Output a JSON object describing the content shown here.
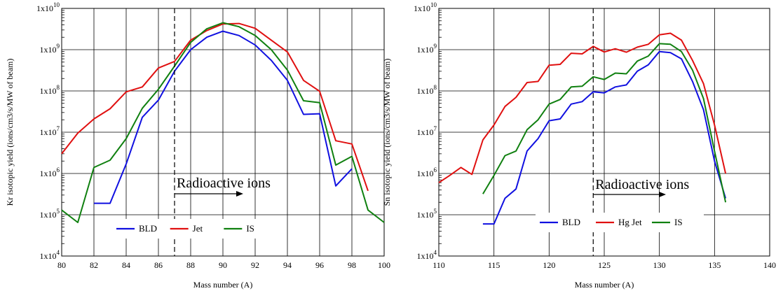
{
  "chart_data": [
    {
      "type": "line",
      "xlabel": "Mass number (A)",
      "ylabel": "Kr isotopic yield (ions/cm3/s/MW of beam)",
      "xlim": [
        80,
        100
      ],
      "ylim_exp": [
        4,
        10
      ],
      "log_y": true,
      "grid": true,
      "x_ticks": [
        "80",
        "82",
        "84",
        "86",
        "88",
        "90",
        "92",
        "94",
        "96",
        "98",
        "100"
      ],
      "y_ticks": [
        {
          "base": "1x10",
          "exp": "4"
        },
        {
          "base": "1x10",
          "exp": "5"
        },
        {
          "base": "1x10",
          "exp": "6"
        },
        {
          "base": "1x10",
          "exp": "7"
        },
        {
          "base": "1x10",
          "exp": "8"
        },
        {
          "base": "1x10",
          "exp": "9"
        },
        {
          "base": "1x10",
          "exp": "10"
        }
      ],
      "divider_x": 87,
      "annotation": "Radioactive ions",
      "legend_position": "bottom",
      "series": [
        {
          "name": "BLD",
          "color": "#1010e0",
          "x": [
            82,
            83,
            84,
            85,
            86,
            87,
            88,
            89,
            90,
            91,
            92,
            93,
            94,
            95,
            96,
            97,
            98
          ],
          "y": [
            190000,
            190000,
            1700000,
            23000000,
            60000000,
            300000000,
            1000000000,
            2000000000,
            2800000000,
            2200000000,
            1300000000,
            550000000,
            180000000,
            27000000,
            28000000,
            500000,
            1300000
          ]
        },
        {
          "name": "Jet",
          "color": "#e01010",
          "x": [
            80,
            81,
            82,
            83,
            84,
            85,
            86,
            87,
            88,
            89,
            90,
            91,
            92,
            93,
            94,
            95,
            96,
            97,
            98,
            99
          ],
          "y": [
            3000000,
            9500000,
            21000000,
            37000000,
            95000000,
            125000000,
            360000000,
            520000000,
            1700000000,
            2900000000,
            4200000000,
            4300000000,
            3300000000,
            1700000000,
            880000000,
            180000000,
            98000000,
            6200000,
            5200000,
            380000
          ]
        },
        {
          "name": "IS",
          "color": "#108010",
          "x": [
            80,
            81,
            82,
            83,
            84,
            85,
            86,
            87,
            88,
            89,
            90,
            91,
            92,
            93,
            94,
            95,
            96,
            97,
            98,
            99,
            100
          ],
          "y": [
            130000,
            65000,
            1400000,
            2100000,
            7000000,
            38000000,
            110000000,
            400000000,
            1500000000,
            3200000000,
            4500000000,
            3600000000,
            2200000000,
            1000000000,
            320000000,
            58000000,
            52000000,
            1600000,
            2600000,
            130000,
            65000
          ]
        }
      ]
    },
    {
      "type": "line",
      "xlabel": "Mass number (A)",
      "ylabel": "Sn isotopic yield (ions/cm3/s/MW of beam)",
      "xlim": [
        110,
        140
      ],
      "ylim_exp": [
        4,
        10
      ],
      "log_y": true,
      "grid": true,
      "x_ticks": [
        "110",
        "115",
        "120",
        "125",
        "130",
        "135",
        "140"
      ],
      "y_ticks": [
        {
          "base": "1x10",
          "exp": "4"
        },
        {
          "base": "1x10",
          "exp": "5"
        },
        {
          "base": "1x10",
          "exp": "6"
        },
        {
          "base": "1x10",
          "exp": "7"
        },
        {
          "base": "1x10",
          "exp": "8"
        },
        {
          "base": "1x10",
          "exp": "9"
        },
        {
          "base": "1x10",
          "exp": "10"
        }
      ],
      "divider_x": 124,
      "annotation": "Radioactive ions",
      "legend_position": "bottom",
      "series": [
        {
          "name": "BLD",
          "color": "#1010e0",
          "x": [
            114,
            115,
            116,
            117,
            118,
            119,
            120,
            121,
            122,
            123,
            124,
            125,
            126,
            127,
            128,
            129,
            130,
            131,
            132,
            133,
            134,
            135,
            136
          ],
          "y": [
            60000,
            60000,
            250000,
            420000,
            3500000,
            7000000,
            19000000,
            21000000,
            48000000,
            55000000,
            95000000,
            90000000,
            125000000,
            140000000,
            300000000,
            430000000,
            900000000,
            850000000,
            600000000,
            170000000,
            35000000,
            2000000,
            250000
          ]
        },
        {
          "name": "Hg Jet",
          "color": "#e01010",
          "x": [
            110,
            111,
            112,
            113,
            114,
            115,
            116,
            117,
            118,
            119,
            120,
            121,
            122,
            123,
            124,
            125,
            126,
            127,
            128,
            129,
            130,
            131,
            132,
            133,
            134,
            135,
            136
          ],
          "y": [
            600000,
            900000,
            1400000,
            950000,
            6500000,
            15000000,
            42000000,
            70000000,
            160000000,
            170000000,
            420000000,
            440000000,
            820000000,
            790000000,
            1200000000,
            880000000,
            1050000000,
            870000000,
            1150000000,
            1350000000,
            2300000000,
            2500000000,
            1700000000,
            550000000,
            150000000,
            15000000,
            1000000
          ]
        },
        {
          "name": "IS",
          "color": "#108010",
          "x": [
            114,
            115,
            116,
            117,
            118,
            119,
            120,
            121,
            122,
            123,
            124,
            125,
            126,
            127,
            128,
            129,
            130,
            131,
            132,
            133,
            134,
            135,
            136
          ],
          "y": [
            320000,
            900000,
            2700000,
            3500000,
            11500000,
            20000000,
            48000000,
            62000000,
            125000000,
            130000000,
            220000000,
            190000000,
            270000000,
            260000000,
            530000000,
            700000000,
            1400000000,
            1350000000,
            900000000,
            320000000,
            65000000,
            3500000,
            200000
          ]
        }
      ]
    }
  ]
}
